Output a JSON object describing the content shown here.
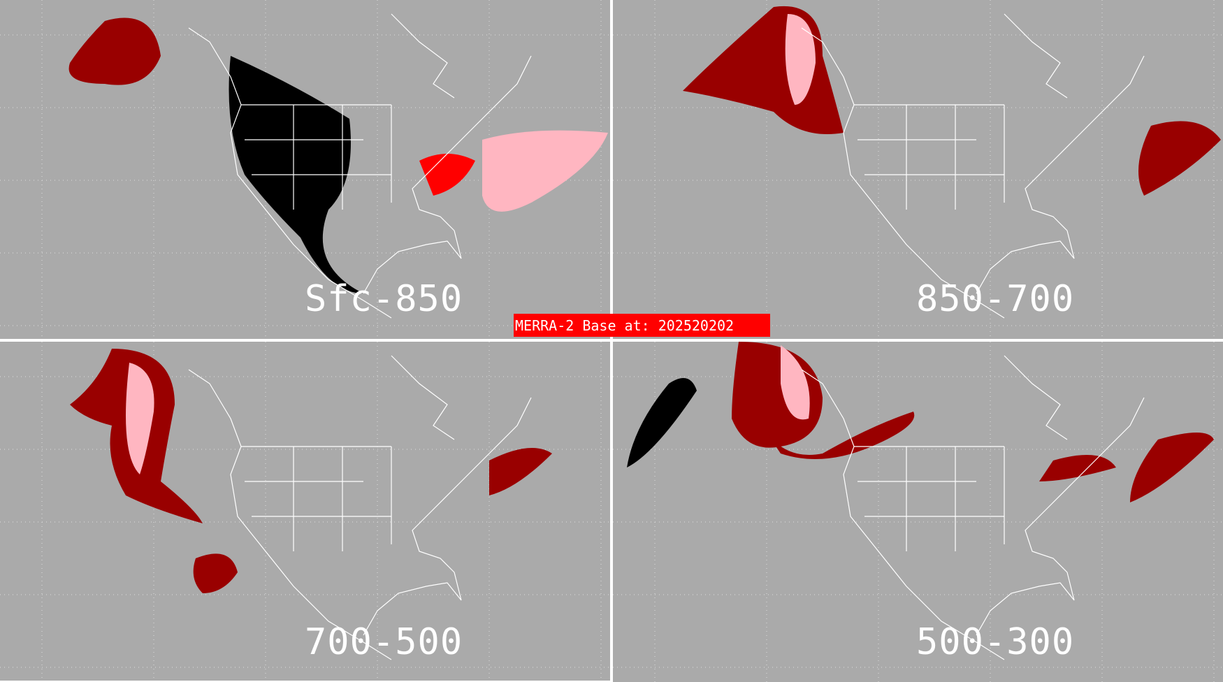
{
  "banner": {
    "text": "MERRA-2 Base at: 202520202"
  },
  "colors": {
    "background": "#aaaaaa",
    "dark_red": "#990000",
    "red": "#ff0000",
    "pink": "#ffb6c1",
    "black": "#000000",
    "coast": "#ffffff"
  },
  "panels": [
    {
      "label": "Sfc-850"
    },
    {
      "label": "850-700"
    },
    {
      "label": "700-500"
    },
    {
      "label": "500-300"
    }
  ]
}
